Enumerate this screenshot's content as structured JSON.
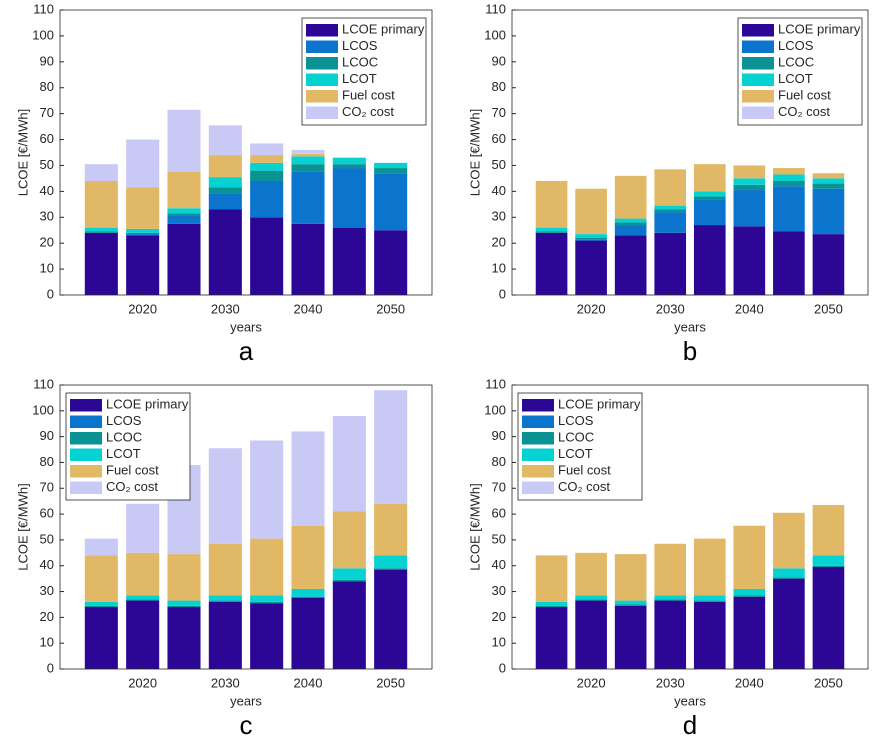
{
  "chart_data": [
    {
      "type": "bar",
      "stacked": true,
      "panel_label": "a",
      "xlabel": "years",
      "ylabel": "LCOE [€/MWh]",
      "legend": "upper right",
      "x": [
        2015,
        2020,
        2025,
        2030,
        2035,
        2040,
        2045,
        2050
      ],
      "xlim": [
        2010,
        2055
      ],
      "xticks": [
        2020,
        2030,
        2040,
        2050
      ],
      "ylim": [
        0,
        110
      ],
      "yticks": [
        0,
        10,
        20,
        30,
        40,
        50,
        60,
        70,
        80,
        90,
        100,
        110
      ],
      "series": [
        {
          "name": "LCOE primary",
          "color": "#2c0795",
          "values": [
            24,
            23,
            27.5,
            33,
            30,
            27.5,
            26,
            25
          ]
        },
        {
          "name": "LCOS",
          "color": "#0b74cc",
          "values": [
            0,
            0.5,
            3,
            6,
            14,
            20,
            23,
            22
          ]
        },
        {
          "name": "LCOC",
          "color": "#0a9294",
          "values": [
            0.5,
            0.5,
            1,
            2.5,
            4,
            3,
            1.5,
            2
          ]
        },
        {
          "name": "LCOT",
          "color": "#07d2d2",
          "values": [
            1.5,
            1.5,
            2,
            4,
            3,
            3,
            2.5,
            2
          ]
        },
        {
          "name": "Fuel cost",
          "color": "#e1b865",
          "values": [
            18,
            16,
            14,
            8.5,
            3,
            1,
            0,
            0
          ]
        },
        {
          "name": "CO₂ cost",
          "color": "#c9c9f6",
          "values": [
            6.5,
            18.5,
            24,
            11.5,
            4.5,
            1.5,
            0,
            0
          ]
        }
      ]
    },
    {
      "type": "bar",
      "stacked": true,
      "panel_label": "b",
      "xlabel": "years",
      "ylabel": "LCOE [€/MWh]",
      "legend": "upper right",
      "x": [
        2015,
        2020,
        2025,
        2030,
        2035,
        2040,
        2045,
        2050
      ],
      "xlim": [
        2010,
        2055
      ],
      "xticks": [
        2020,
        2030,
        2040,
        2050
      ],
      "ylim": [
        0,
        110
      ],
      "yticks": [
        0,
        10,
        20,
        30,
        40,
        50,
        60,
        70,
        80,
        90,
        100,
        110
      ],
      "series": [
        {
          "name": "LCOE primary",
          "color": "#2c0795",
          "values": [
            24,
            21,
            23,
            24,
            27,
            26.5,
            24.5,
            23.5
          ]
        },
        {
          "name": "LCOS",
          "color": "#0b74cc",
          "values": [
            0,
            0.5,
            4,
            8,
            10,
            14,
            17.5,
            17.5
          ]
        },
        {
          "name": "LCOC",
          "color": "#0a9294",
          "values": [
            0.5,
            0.5,
            1,
            1,
            1,
            2,
            2,
            2
          ]
        },
        {
          "name": "LCOT",
          "color": "#07d2d2",
          "values": [
            1.5,
            1.5,
            1.5,
            1.5,
            2,
            2.5,
            2.5,
            2
          ]
        },
        {
          "name": "Fuel cost",
          "color": "#e1b865",
          "values": [
            18,
            17.5,
            16.5,
            14,
            10.5,
            5,
            2.5,
            2
          ]
        },
        {
          "name": "CO₂ cost",
          "color": "#c9c9f6",
          "values": [
            0,
            0,
            0,
            0,
            0,
            0,
            0,
            0
          ]
        }
      ]
    },
    {
      "type": "bar",
      "stacked": true,
      "panel_label": "c",
      "xlabel": "years",
      "ylabel": "LCOE [€/MWh]",
      "legend": "upper left",
      "x": [
        2015,
        2020,
        2025,
        2030,
        2035,
        2040,
        2045,
        2050
      ],
      "xlim": [
        2010,
        2055
      ],
      "xticks": [
        2020,
        2030,
        2040,
        2050
      ],
      "ylim": [
        0,
        110
      ],
      "yticks": [
        0,
        10,
        20,
        30,
        40,
        50,
        60,
        70,
        80,
        90,
        100,
        110
      ],
      "series": [
        {
          "name": "LCOE primary",
          "color": "#2c0795",
          "values": [
            24,
            26.5,
            24,
            26,
            25.5,
            27.5,
            34,
            38.5
          ]
        },
        {
          "name": "LCOS",
          "color": "#0b74cc",
          "values": [
            0,
            0,
            0,
            0,
            0,
            0,
            0,
            0
          ]
        },
        {
          "name": "LCOC",
          "color": "#0a9294",
          "values": [
            0.5,
            0.5,
            0.5,
            0.5,
            0.5,
            0.5,
            0.5,
            0.5
          ]
        },
        {
          "name": "LCOT",
          "color": "#07d2d2",
          "values": [
            1.5,
            1.5,
            2,
            2,
            2.5,
            3,
            4.5,
            5
          ]
        },
        {
          "name": "Fuel cost",
          "color": "#e1b865",
          "values": [
            18,
            16.5,
            18,
            20,
            22,
            24.5,
            22,
            20
          ]
        },
        {
          "name": "CO₂ cost",
          "color": "#c9c9f6",
          "values": [
            6.5,
            19,
            34.5,
            37,
            38,
            36.5,
            37,
            44
          ]
        }
      ]
    },
    {
      "type": "bar",
      "stacked": true,
      "panel_label": "d",
      "xlabel": "years",
      "ylabel": "LCOE [€/MWh]",
      "legend": "upper left",
      "x": [
        2015,
        2020,
        2025,
        2030,
        2035,
        2040,
        2045,
        2050
      ],
      "xlim": [
        2010,
        2055
      ],
      "xticks": [
        2020,
        2030,
        2040,
        2050
      ],
      "ylim": [
        0,
        110
      ],
      "yticks": [
        0,
        10,
        20,
        30,
        40,
        50,
        60,
        70,
        80,
        90,
        100,
        110
      ],
      "series": [
        {
          "name": "LCOE primary",
          "color": "#2c0795",
          "values": [
            24,
            26.5,
            24.5,
            26.5,
            26,
            28,
            35,
            39.5
          ]
        },
        {
          "name": "LCOS",
          "color": "#0b74cc",
          "values": [
            0,
            0,
            0,
            0,
            0,
            0,
            0,
            0
          ]
        },
        {
          "name": "LCOC",
          "color": "#0a9294",
          "values": [
            0.5,
            0.5,
            0.5,
            0.5,
            0.5,
            0.5,
            0.5,
            0.5
          ]
        },
        {
          "name": "LCOT",
          "color": "#07d2d2",
          "values": [
            1.5,
            1.5,
            1.5,
            1.5,
            2,
            2.5,
            3.5,
            4
          ]
        },
        {
          "name": "Fuel cost",
          "color": "#e1b865",
          "values": [
            18,
            16.5,
            18,
            20,
            22,
            24.5,
            21.5,
            19.5
          ]
        },
        {
          "name": "CO₂ cost",
          "color": "#c9c9f6",
          "values": [
            0,
            0,
            0,
            0,
            0,
            0,
            0,
            0
          ]
        }
      ]
    }
  ]
}
